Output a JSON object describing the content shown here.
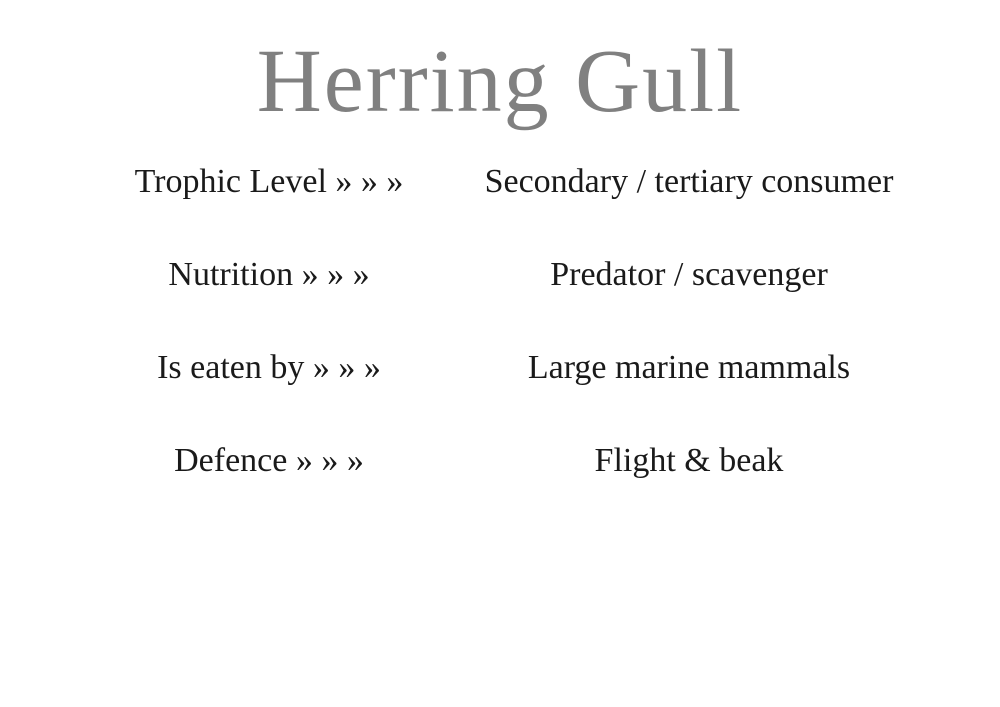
{
  "title": "Herring Gull",
  "arrow": " » » »",
  "rows": [
    {
      "label": "Trophic Level",
      "value": "Secondary / tertiary consumer"
    },
    {
      "label": "Nutrition",
      "value": "Predator / scavenger"
    },
    {
      "label": "Is eaten by",
      "value": "Large marine mammals"
    },
    {
      "label": "Defence",
      "value": "Flight & beak"
    }
  ],
  "styling": {
    "title_color": "#808080",
    "text_color": "#1a1a1a",
    "background_color": "#ffffff",
    "title_fontsize": 90,
    "body_fontsize": 34,
    "font_family": "handwriting"
  }
}
